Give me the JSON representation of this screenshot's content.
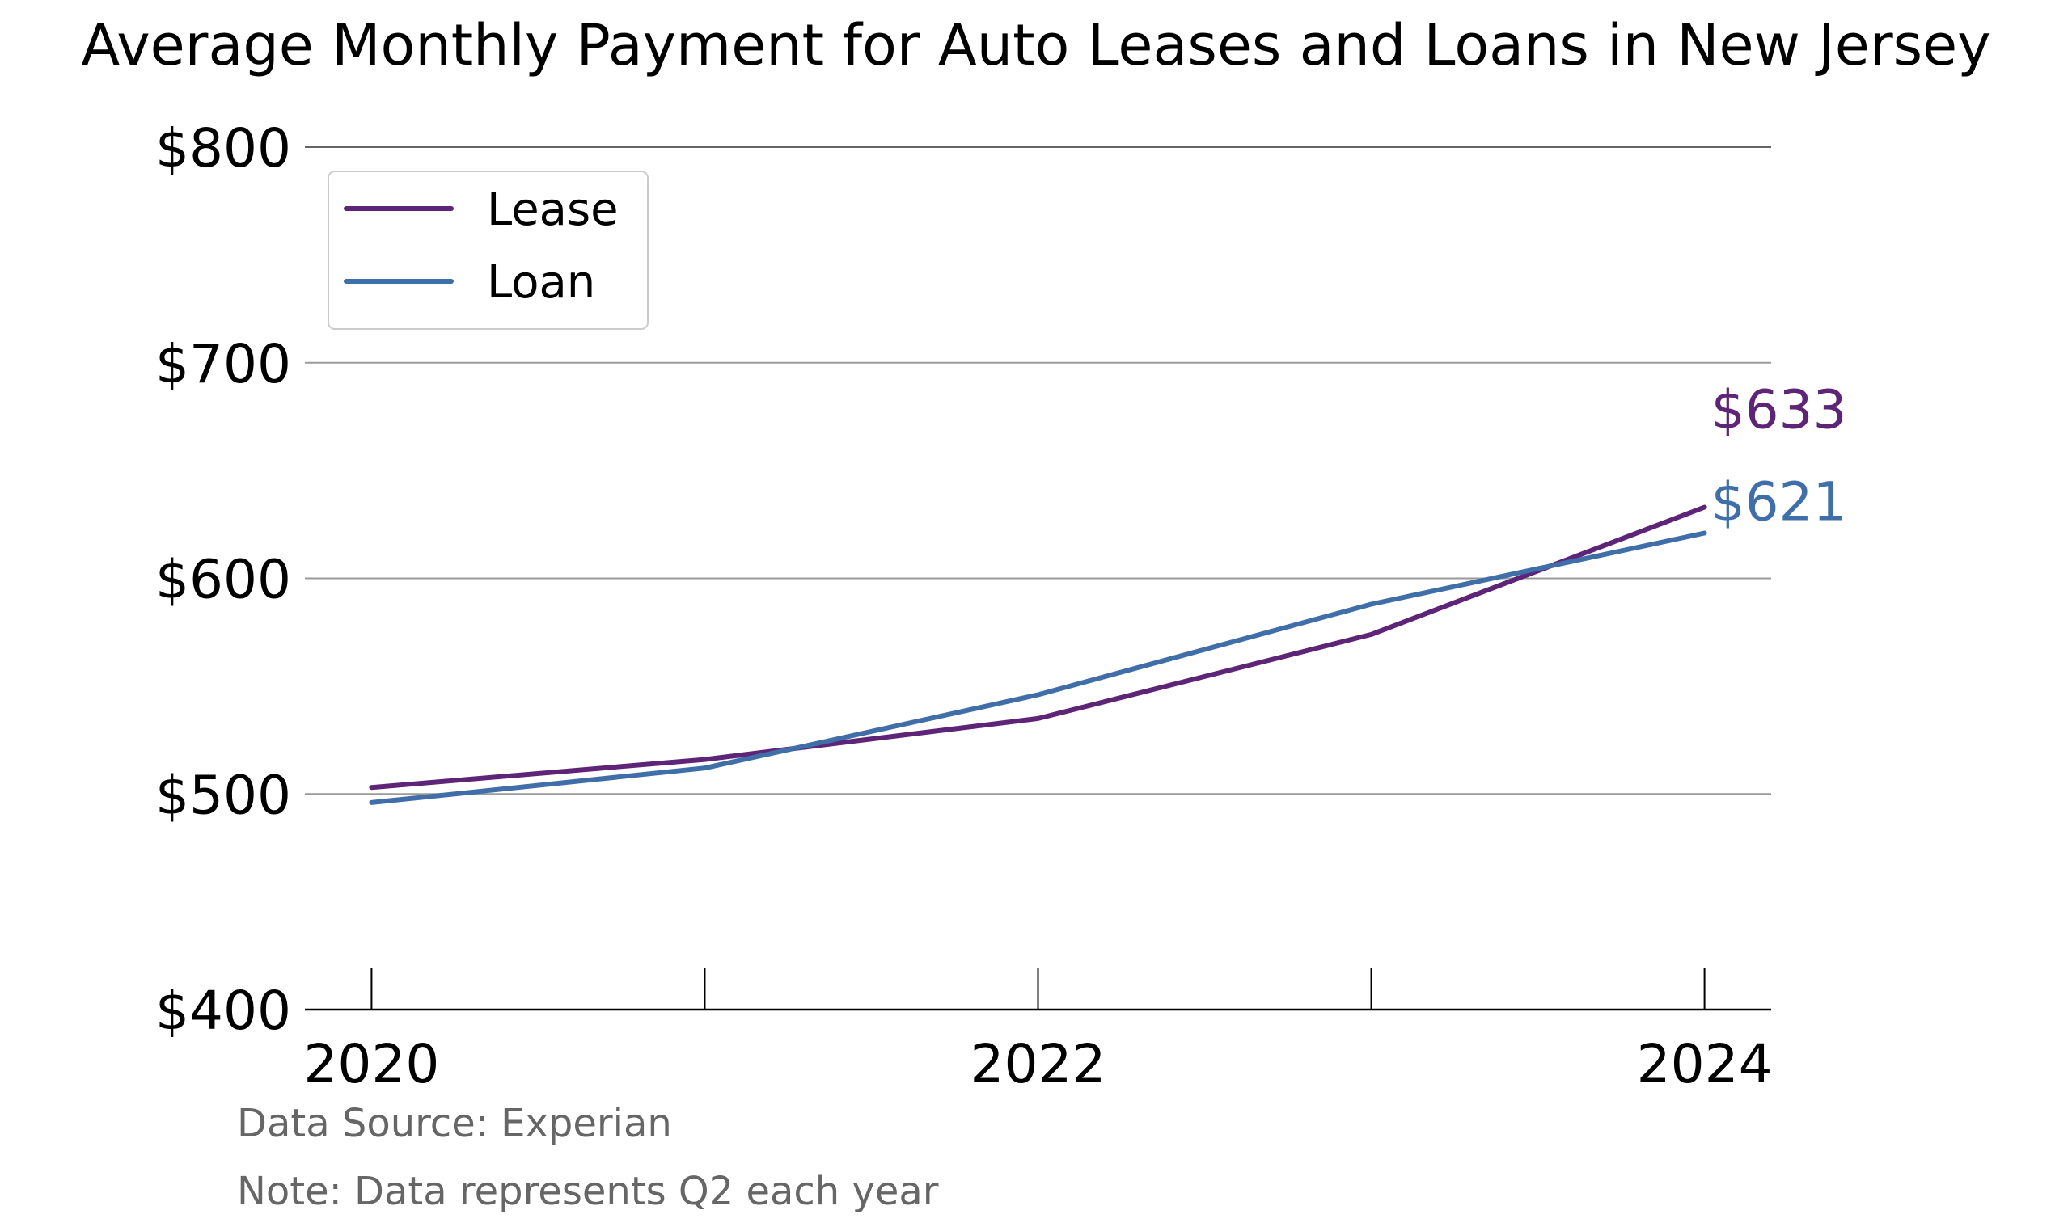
{
  "chart_data": {
    "type": "line",
    "title": "Average Monthly Payment for Auto Leases and Loans in New Jersey",
    "x": [
      2020,
      2021,
      2022,
      2023,
      2024
    ],
    "xticks": [
      "2020",
      "2022",
      "2024"
    ],
    "xlim": [
      2019.8,
      2024.2
    ],
    "ylim": [
      400,
      800
    ],
    "yticks": [
      "$400",
      "$500",
      "$600",
      "$700",
      "$800"
    ],
    "ytick_values": [
      400,
      500,
      600,
      700,
      800
    ],
    "grid": "horizontal",
    "legend_position": "top-left",
    "series": [
      {
        "name": "Lease",
        "color": "#5e2477",
        "values": [
          503,
          516,
          535,
          574,
          633
        ],
        "end_label": "$633"
      },
      {
        "name": "Loan",
        "color": "#406ea8",
        "values": [
          496,
          512,
          546,
          588,
          621
        ],
        "end_label": "$621"
      }
    ]
  },
  "notes": {
    "source": "Data Source: Experian",
    "note": "Note: Data represents Q2 each year"
  }
}
